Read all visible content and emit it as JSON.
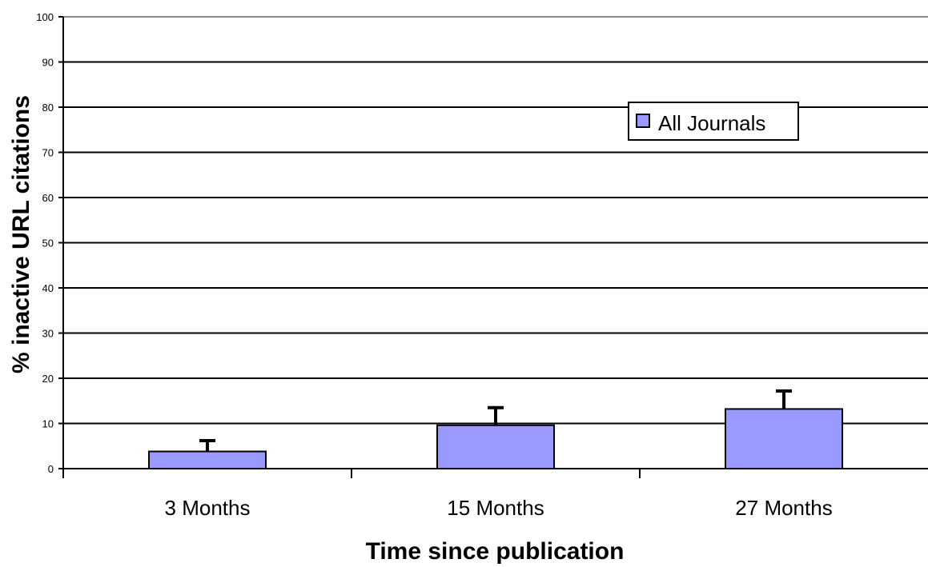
{
  "chart_data": {
    "type": "bar",
    "categories": [
      "3 Months",
      "15 Months",
      "27 Months"
    ],
    "series": [
      {
        "name": "All Journals",
        "values": [
          3.8,
          9.6,
          13.2
        ],
        "error_upper": [
          6.2,
          13.5,
          17.2
        ],
        "color": "#9999ff"
      }
    ],
    "xlabel": "Time since publication",
    "ylabel": "% inactive URL citations",
    "ylim": [
      0,
      100
    ],
    "yticks": [
      0,
      10,
      20,
      30,
      40,
      50,
      60,
      70,
      80,
      90,
      100
    ],
    "grid": true,
    "legend_position": "top-right"
  }
}
